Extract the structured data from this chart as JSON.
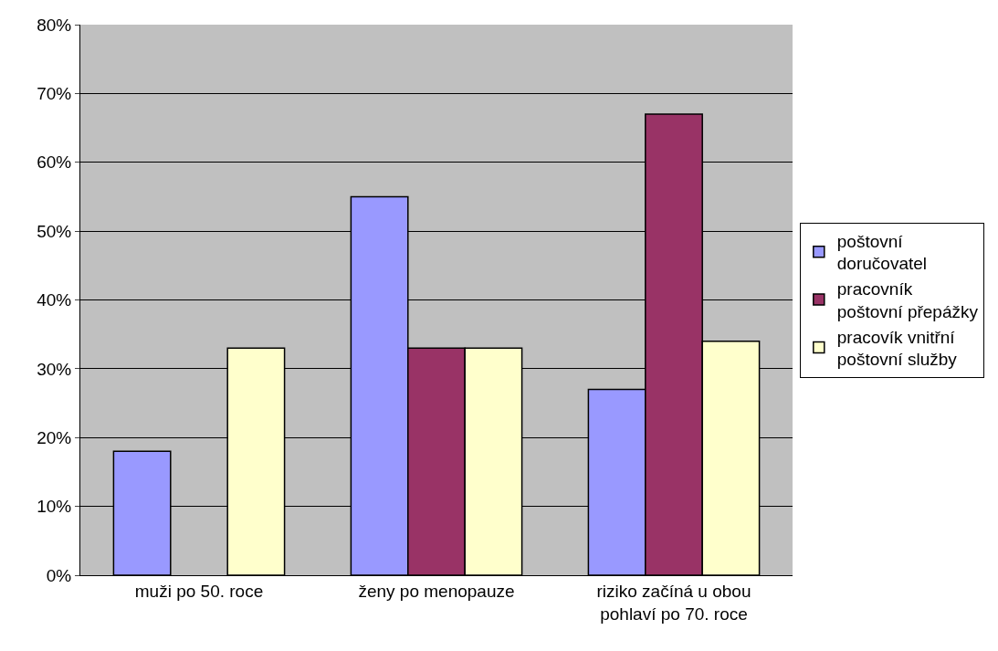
{
  "chart_data": {
    "type": "bar",
    "categories": [
      "muži po 50. roce",
      "ženy po menopauze",
      "riziko začíná u obou pohlaví po 70. roce"
    ],
    "series": [
      {
        "name": "poštovní doručovatel",
        "color": "#9999ff",
        "values": [
          18,
          55,
          27
        ]
      },
      {
        "name": "pracovník poštovní přepážky",
        "color": "#993366",
        "values": [
          null,
          33,
          67
        ]
      },
      {
        "name": "pracovík vnitřní poštovní služby",
        "color": "#ffffcc",
        "values": [
          33,
          33,
          34
        ]
      }
    ],
    "ylim": [
      0,
      80
    ],
    "yticks": [
      {
        "value": 0,
        "label": "0%"
      },
      {
        "value": 10,
        "label": "10%"
      },
      {
        "value": 20,
        "label": "20%"
      },
      {
        "value": 30,
        "label": "30%"
      },
      {
        "value": 40,
        "label": "40%"
      },
      {
        "value": 50,
        "label": "50%"
      },
      {
        "value": 60,
        "label": "60%"
      },
      {
        "value": 70,
        "label": "70%"
      },
      {
        "value": 80,
        "label": "80%"
      }
    ],
    "grid": "y",
    "legend": "right"
  }
}
